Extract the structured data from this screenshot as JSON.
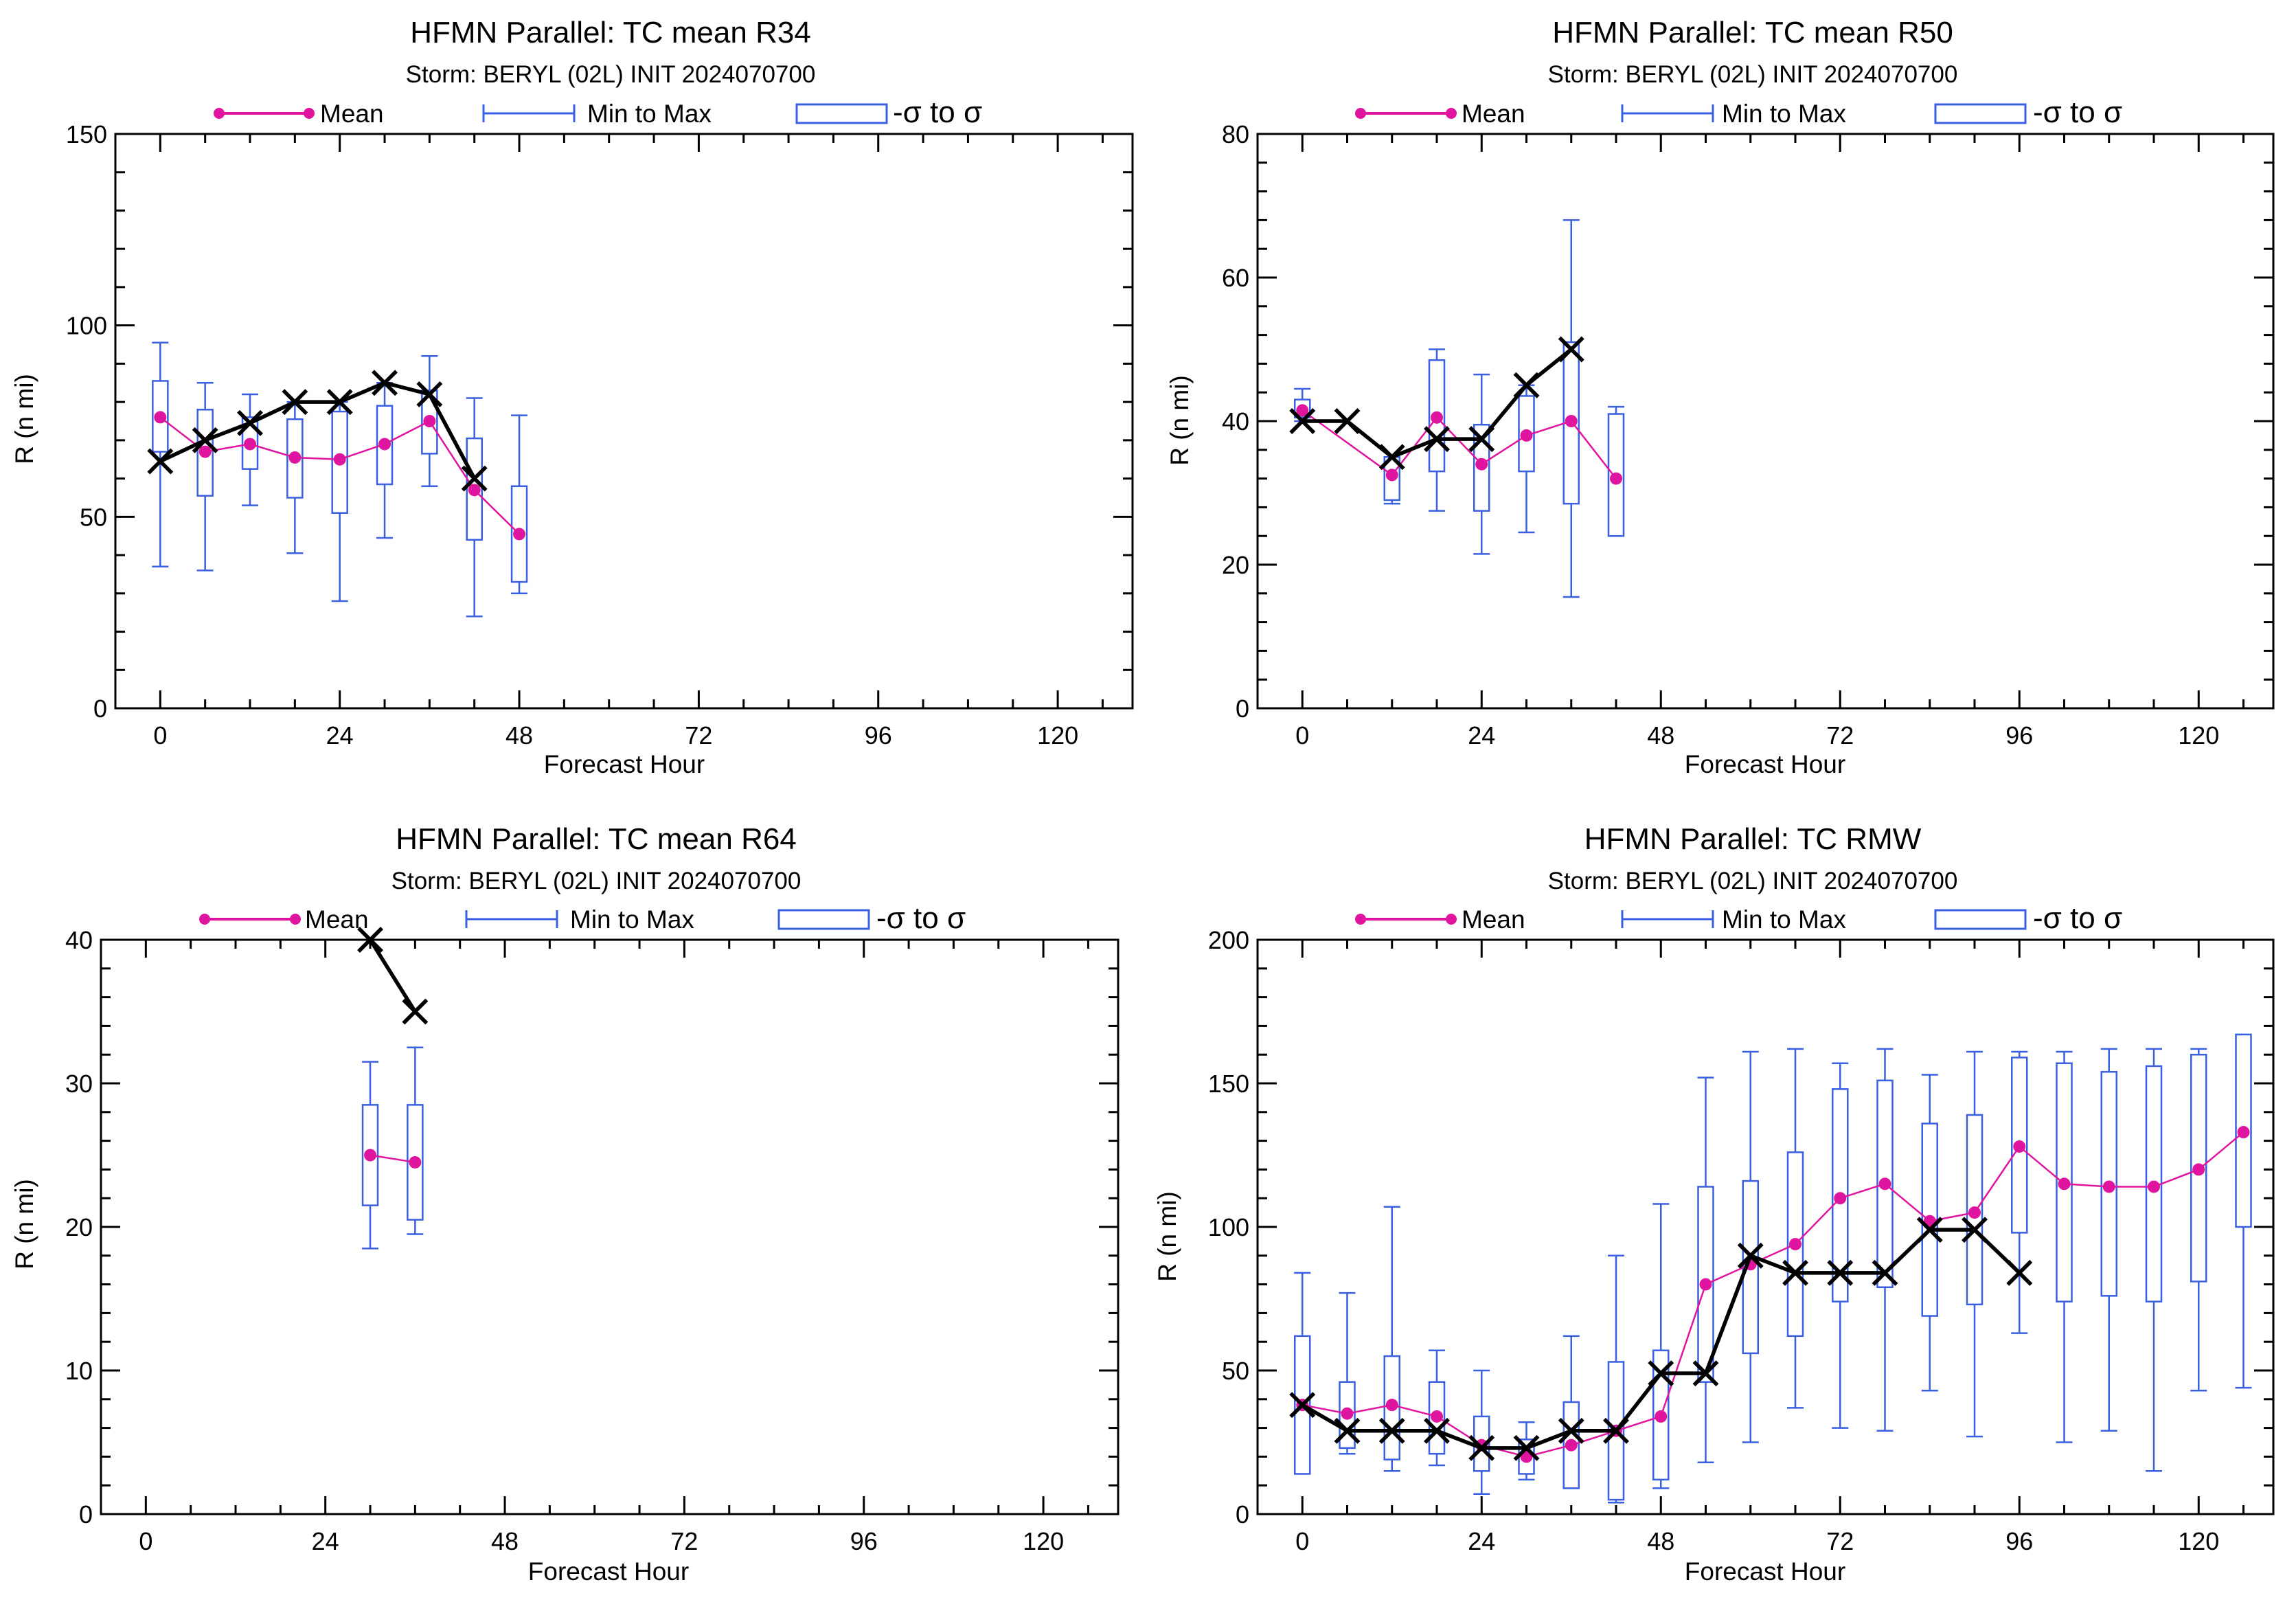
{
  "colors": {
    "mean": "#e0159f",
    "range": "#3a5fe0",
    "box": "#3a5fe0",
    "actual": "#000000",
    "axes": "#000000"
  },
  "legend": {
    "mean": "Mean",
    "range": "Min to Max",
    "box": "-σ to σ"
  },
  "chart_data": [
    {
      "type": "box-line",
      "title": "HFMN Parallel: TC mean R34",
      "subtitle": "Storm: BERYL (02L) INIT 2024070700",
      "xlabel": "Forecast Hour",
      "ylabel": "R (n mi)",
      "xlim": [
        -6,
        130
      ],
      "ylim": [
        0,
        150
      ],
      "xticks": [
        0,
        24,
        48,
        72,
        96,
        120
      ],
      "yticks": [
        0,
        50,
        100,
        150
      ],
      "mean": [
        [
          0,
          76
        ],
        [
          6,
          67
        ],
        [
          12,
          69
        ],
        [
          18,
          65.5
        ],
        [
          24,
          65
        ],
        [
          30,
          69
        ],
        [
          36,
          75
        ],
        [
          42,
          57
        ],
        [
          48,
          45.5
        ]
      ],
      "range": [
        [
          0,
          37,
          95.5
        ],
        [
          6,
          36,
          85
        ],
        [
          12,
          53,
          82
        ],
        [
          18,
          40.5,
          80
        ],
        [
          24,
          28,
          80
        ],
        [
          30,
          44.5,
          85
        ],
        [
          36,
          58,
          92
        ],
        [
          42,
          24,
          81
        ],
        [
          48,
          30,
          76.5
        ]
      ],
      "box": [
        [
          0,
          67,
          85.5
        ],
        [
          6,
          55.5,
          78
        ],
        [
          12,
          62.5,
          76
        ],
        [
          18,
          55,
          75.5
        ],
        [
          24,
          51,
          77.5
        ],
        [
          30,
          58.5,
          79
        ],
        [
          36,
          66.5,
          83
        ],
        [
          42,
          44,
          70.5
        ],
        [
          48,
          33,
          58
        ]
      ],
      "actual": [
        [
          0,
          64.5
        ],
        [
          6,
          70
        ],
        [
          12,
          74.5
        ],
        [
          18,
          80
        ],
        [
          24,
          80
        ],
        [
          30,
          85
        ],
        [
          36,
          82
        ],
        [
          42,
          60
        ]
      ]
    },
    {
      "type": "box-line",
      "title": "HFMN Parallel: TC mean R50",
      "subtitle": "Storm: BERYL (02L) INIT 2024070700",
      "xlabel": "Forecast Hour",
      "ylabel": "R (n mi)",
      "xlim": [
        -6,
        130
      ],
      "ylim": [
        0,
        80
      ],
      "xticks": [
        0,
        24,
        48,
        72,
        96,
        120
      ],
      "yticks": [
        0,
        20,
        40,
        60,
        80
      ],
      "mean": [
        [
          0,
          41.5
        ],
        [
          12,
          32.5
        ],
        [
          18,
          40.5
        ],
        [
          24,
          34
        ],
        [
          30,
          38
        ],
        [
          36,
          40
        ],
        [
          42,
          32
        ]
      ],
      "range": [
        [
          0,
          40,
          44.5
        ],
        [
          12,
          28.5,
          35
        ],
        [
          18,
          27.5,
          50
        ],
        [
          24,
          21.5,
          46.5
        ],
        [
          30,
          24.5,
          45
        ],
        [
          36,
          15.5,
          68
        ],
        [
          42,
          24,
          42
        ]
      ],
      "box": [
        [
          0,
          40.5,
          43
        ],
        [
          12,
          29,
          35
        ],
        [
          18,
          33,
          48.5
        ],
        [
          24,
          27.5,
          39.5
        ],
        [
          30,
          33,
          43.5
        ],
        [
          36,
          28.5,
          51
        ],
        [
          42,
          24,
          41
        ]
      ],
      "actual": [
        [
          0,
          40
        ],
        [
          6,
          40
        ],
        [
          12,
          35
        ],
        [
          18,
          37.5
        ],
        [
          24,
          37.5
        ],
        [
          30,
          45
        ],
        [
          36,
          50
        ]
      ]
    },
    {
      "type": "box-line",
      "title": "HFMN Parallel: TC mean R64",
      "subtitle": "Storm: BERYL (02L) INIT 2024070700",
      "xlabel": "Forecast Hour",
      "ylabel": "R (n mi)",
      "xlim": [
        -6,
        130
      ],
      "ylim": [
        0,
        40
      ],
      "xticks": [
        0,
        24,
        48,
        72,
        96,
        120
      ],
      "yticks": [
        0,
        10,
        20,
        30,
        40
      ],
      "mean": [
        [
          30,
          25
        ],
        [
          36,
          24.5
        ]
      ],
      "range": [
        [
          30,
          18.5,
          31.5
        ],
        [
          36,
          19.5,
          32.5
        ]
      ],
      "box": [
        [
          30,
          21.5,
          28.5
        ],
        [
          36,
          20.5,
          28.5
        ]
      ],
      "actual": [
        [
          30,
          40
        ],
        [
          36,
          35
        ]
      ]
    },
    {
      "type": "box-line",
      "title": "HFMN Parallel: TC RMW",
      "subtitle": "Storm: BERYL (02L) INIT 2024070700",
      "xlabel": "Forecast Hour",
      "ylabel": "R (n mi)",
      "xlim": [
        -6,
        130
      ],
      "ylim": [
        0,
        200
      ],
      "xticks": [
        0,
        24,
        48,
        72,
        96,
        120
      ],
      "yticks": [
        0,
        50,
        100,
        150,
        200
      ],
      "mean": [
        [
          0,
          38
        ],
        [
          6,
          35
        ],
        [
          12,
          38
        ],
        [
          18,
          34
        ],
        [
          24,
          24
        ],
        [
          30,
          20
        ],
        [
          36,
          24
        ],
        [
          42,
          29
        ],
        [
          48,
          34
        ],
        [
          54,
          80
        ],
        [
          60,
          87
        ],
        [
          66,
          94
        ],
        [
          72,
          110
        ],
        [
          78,
          115
        ],
        [
          84,
          102
        ],
        [
          90,
          105
        ],
        [
          96,
          128
        ],
        [
          102,
          115
        ],
        [
          108,
          114
        ],
        [
          114,
          114
        ],
        [
          120,
          120
        ],
        [
          126,
          133
        ]
      ],
      "range": [
        [
          0,
          23,
          84
        ],
        [
          6,
          21,
          77
        ],
        [
          12,
          15,
          107
        ],
        [
          18,
          17,
          57
        ],
        [
          24,
          7,
          50
        ],
        [
          30,
          12,
          32
        ],
        [
          36,
          9,
          62
        ],
        [
          42,
          4,
          90
        ],
        [
          48,
          9,
          108
        ],
        [
          54,
          18,
          152
        ],
        [
          60,
          25,
          161
        ],
        [
          66,
          37,
          162
        ],
        [
          72,
          30,
          157
        ],
        [
          78,
          29,
          162
        ],
        [
          84,
          43,
          153
        ],
        [
          90,
          27,
          161
        ],
        [
          96,
          63,
          161
        ],
        [
          102,
          25,
          161
        ],
        [
          108,
          29,
          162
        ],
        [
          114,
          15,
          162
        ],
        [
          120,
          43,
          162
        ],
        [
          126,
          44,
          167
        ]
      ],
      "box": [
        [
          0,
          14,
          62
        ],
        [
          6,
          23,
          46
        ],
        [
          12,
          19,
          55
        ],
        [
          18,
          21,
          46
        ],
        [
          24,
          15,
          34
        ],
        [
          30,
          14,
          26
        ],
        [
          36,
          9,
          39
        ],
        [
          42,
          5,
          53
        ],
        [
          48,
          12,
          57
        ],
        [
          54,
          46,
          114
        ],
        [
          60,
          56,
          116
        ],
        [
          66,
          62,
          126
        ],
        [
          72,
          74,
          148
        ],
        [
          78,
          79,
          151
        ],
        [
          84,
          69,
          136
        ],
        [
          90,
          73,
          139
        ],
        [
          96,
          98,
          159
        ],
        [
          102,
          74,
          157
        ],
        [
          108,
          76,
          154
        ],
        [
          114,
          74,
          156
        ],
        [
          120,
          81,
          160
        ],
        [
          126,
          100,
          167
        ]
      ],
      "actual": [
        [
          0,
          38
        ],
        [
          6,
          29
        ],
        [
          12,
          29
        ],
        [
          18,
          29
        ],
        [
          24,
          23
        ],
        [
          30,
          23
        ],
        [
          36,
          29
        ],
        [
          42,
          29
        ],
        [
          48,
          49
        ],
        [
          54,
          49
        ],
        [
          60,
          90
        ],
        [
          66,
          84
        ],
        [
          72,
          84
        ],
        [
          78,
          84
        ],
        [
          84,
          99
        ],
        [
          90,
          99
        ],
        [
          96,
          84
        ]
      ]
    }
  ]
}
